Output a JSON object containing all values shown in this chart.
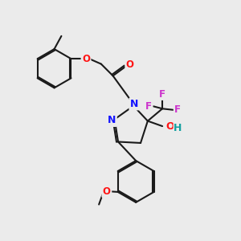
{
  "background_color": "#ebebeb",
  "bond_color": "#1a1a1a",
  "bond_width": 1.5,
  "atom_colors": {
    "N": "#1414ff",
    "O": "#ff1414",
    "F": "#cc33cc",
    "H": "#14a0a0",
    "C": "#1a1a1a"
  }
}
